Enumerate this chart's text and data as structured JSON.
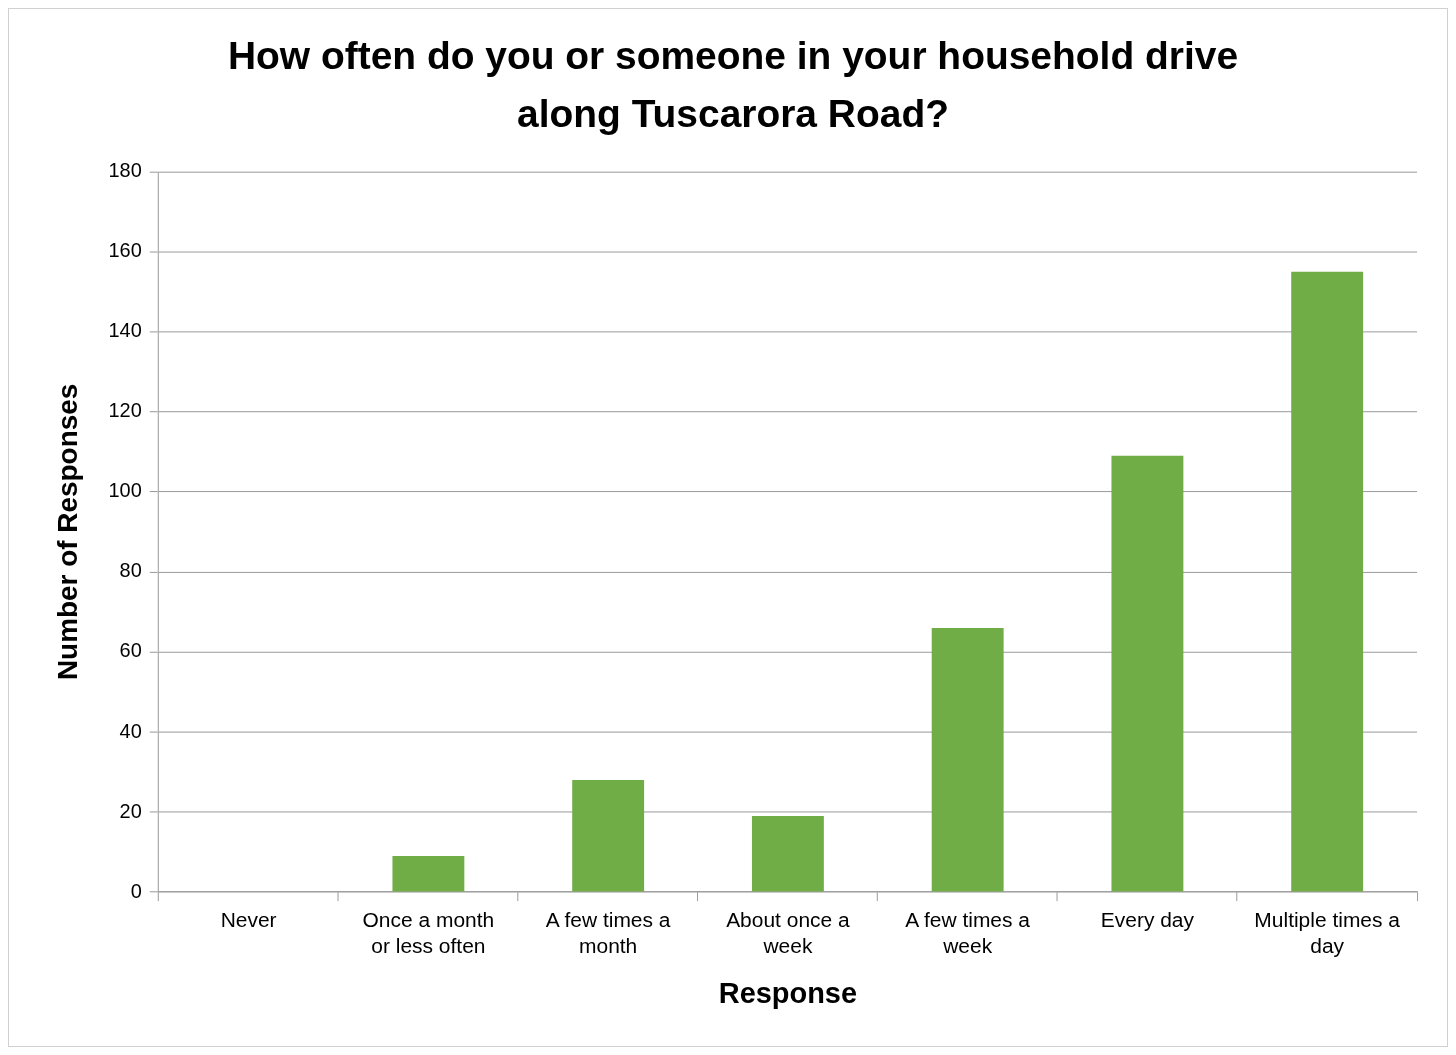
{
  "chart_data": {
    "type": "bar",
    "title": "How often do you or someone in your household drive along Tuscarora Road?",
    "xlabel": "Response",
    "ylabel": "Number of Responses",
    "categories": [
      "Never",
      "Once a month or less often",
      "A few times a month",
      "About once a week",
      "A few times a week",
      "Every day",
      "Multiple times a day"
    ],
    "values": [
      0,
      9,
      28,
      19,
      66,
      109,
      155
    ],
    "color": "#70ad47",
    "ylim": [
      0,
      180
    ],
    "yticks": [
      0,
      20,
      40,
      60,
      80,
      100,
      120,
      140,
      160,
      180
    ],
    "grid": "y"
  }
}
